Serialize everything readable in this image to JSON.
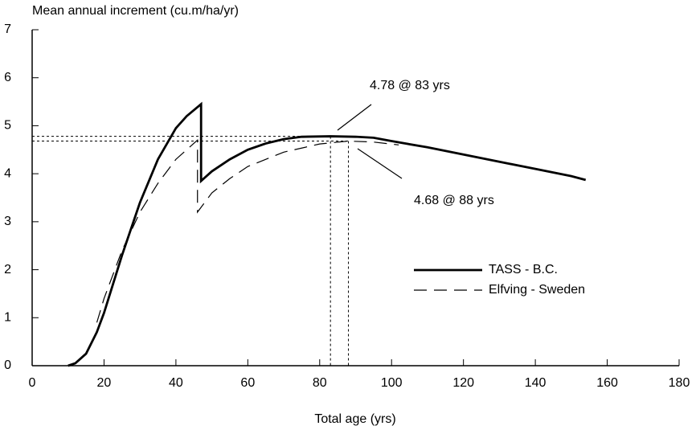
{
  "chart_data": {
    "type": "line",
    "y_label": "Mean annual increment (cu.m/ha/yr)",
    "x_label": "Total age (yrs)",
    "xlim": [
      0,
      180
    ],
    "xticks": [
      0,
      20,
      40,
      60,
      80,
      100,
      120,
      140,
      160,
      180
    ],
    "ylim": [
      0,
      7
    ],
    "yticks": [
      0,
      1,
      2,
      3,
      4,
      5,
      6,
      7
    ],
    "legend": "lower right",
    "series": [
      {
        "name": "TASS - B.C.",
        "color": "#000000",
        "style": "solid",
        "x": [
          10,
          12,
          15,
          18,
          20,
          25,
          30,
          35,
          40,
          43,
          47,
          47,
          50,
          55,
          60,
          65,
          70,
          75,
          83,
          90,
          95,
          100,
          110,
          120,
          130,
          140,
          150,
          154
        ],
        "values": [
          0,
          0.05,
          0.25,
          0.7,
          1.1,
          2.3,
          3.4,
          4.3,
          4.95,
          5.2,
          5.45,
          3.85,
          4.05,
          4.3,
          4.5,
          4.63,
          4.72,
          4.77,
          4.78,
          4.77,
          4.75,
          4.68,
          4.55,
          4.4,
          4.25,
          4.1,
          3.95,
          3.87
        ]
      },
      {
        "name": "Elfving - Sweden",
        "color": "#000000",
        "style": "dashed",
        "x": [
          18,
          20,
          25,
          30,
          35,
          40,
          46,
          46,
          50,
          55,
          60,
          70,
          80,
          88,
          95,
          102
        ],
        "values": [
          0.9,
          1.4,
          2.4,
          3.2,
          3.8,
          4.3,
          4.7,
          3.2,
          3.6,
          3.9,
          4.15,
          4.45,
          4.62,
          4.68,
          4.66,
          4.6
        ]
      }
    ],
    "annotations": [
      {
        "text": "4.78 @ 83 yrs",
        "x": 83,
        "y": 4.78
      },
      {
        "text": "4.68 @ 88 yrs",
        "x": 88,
        "y": 4.68
      }
    ]
  }
}
